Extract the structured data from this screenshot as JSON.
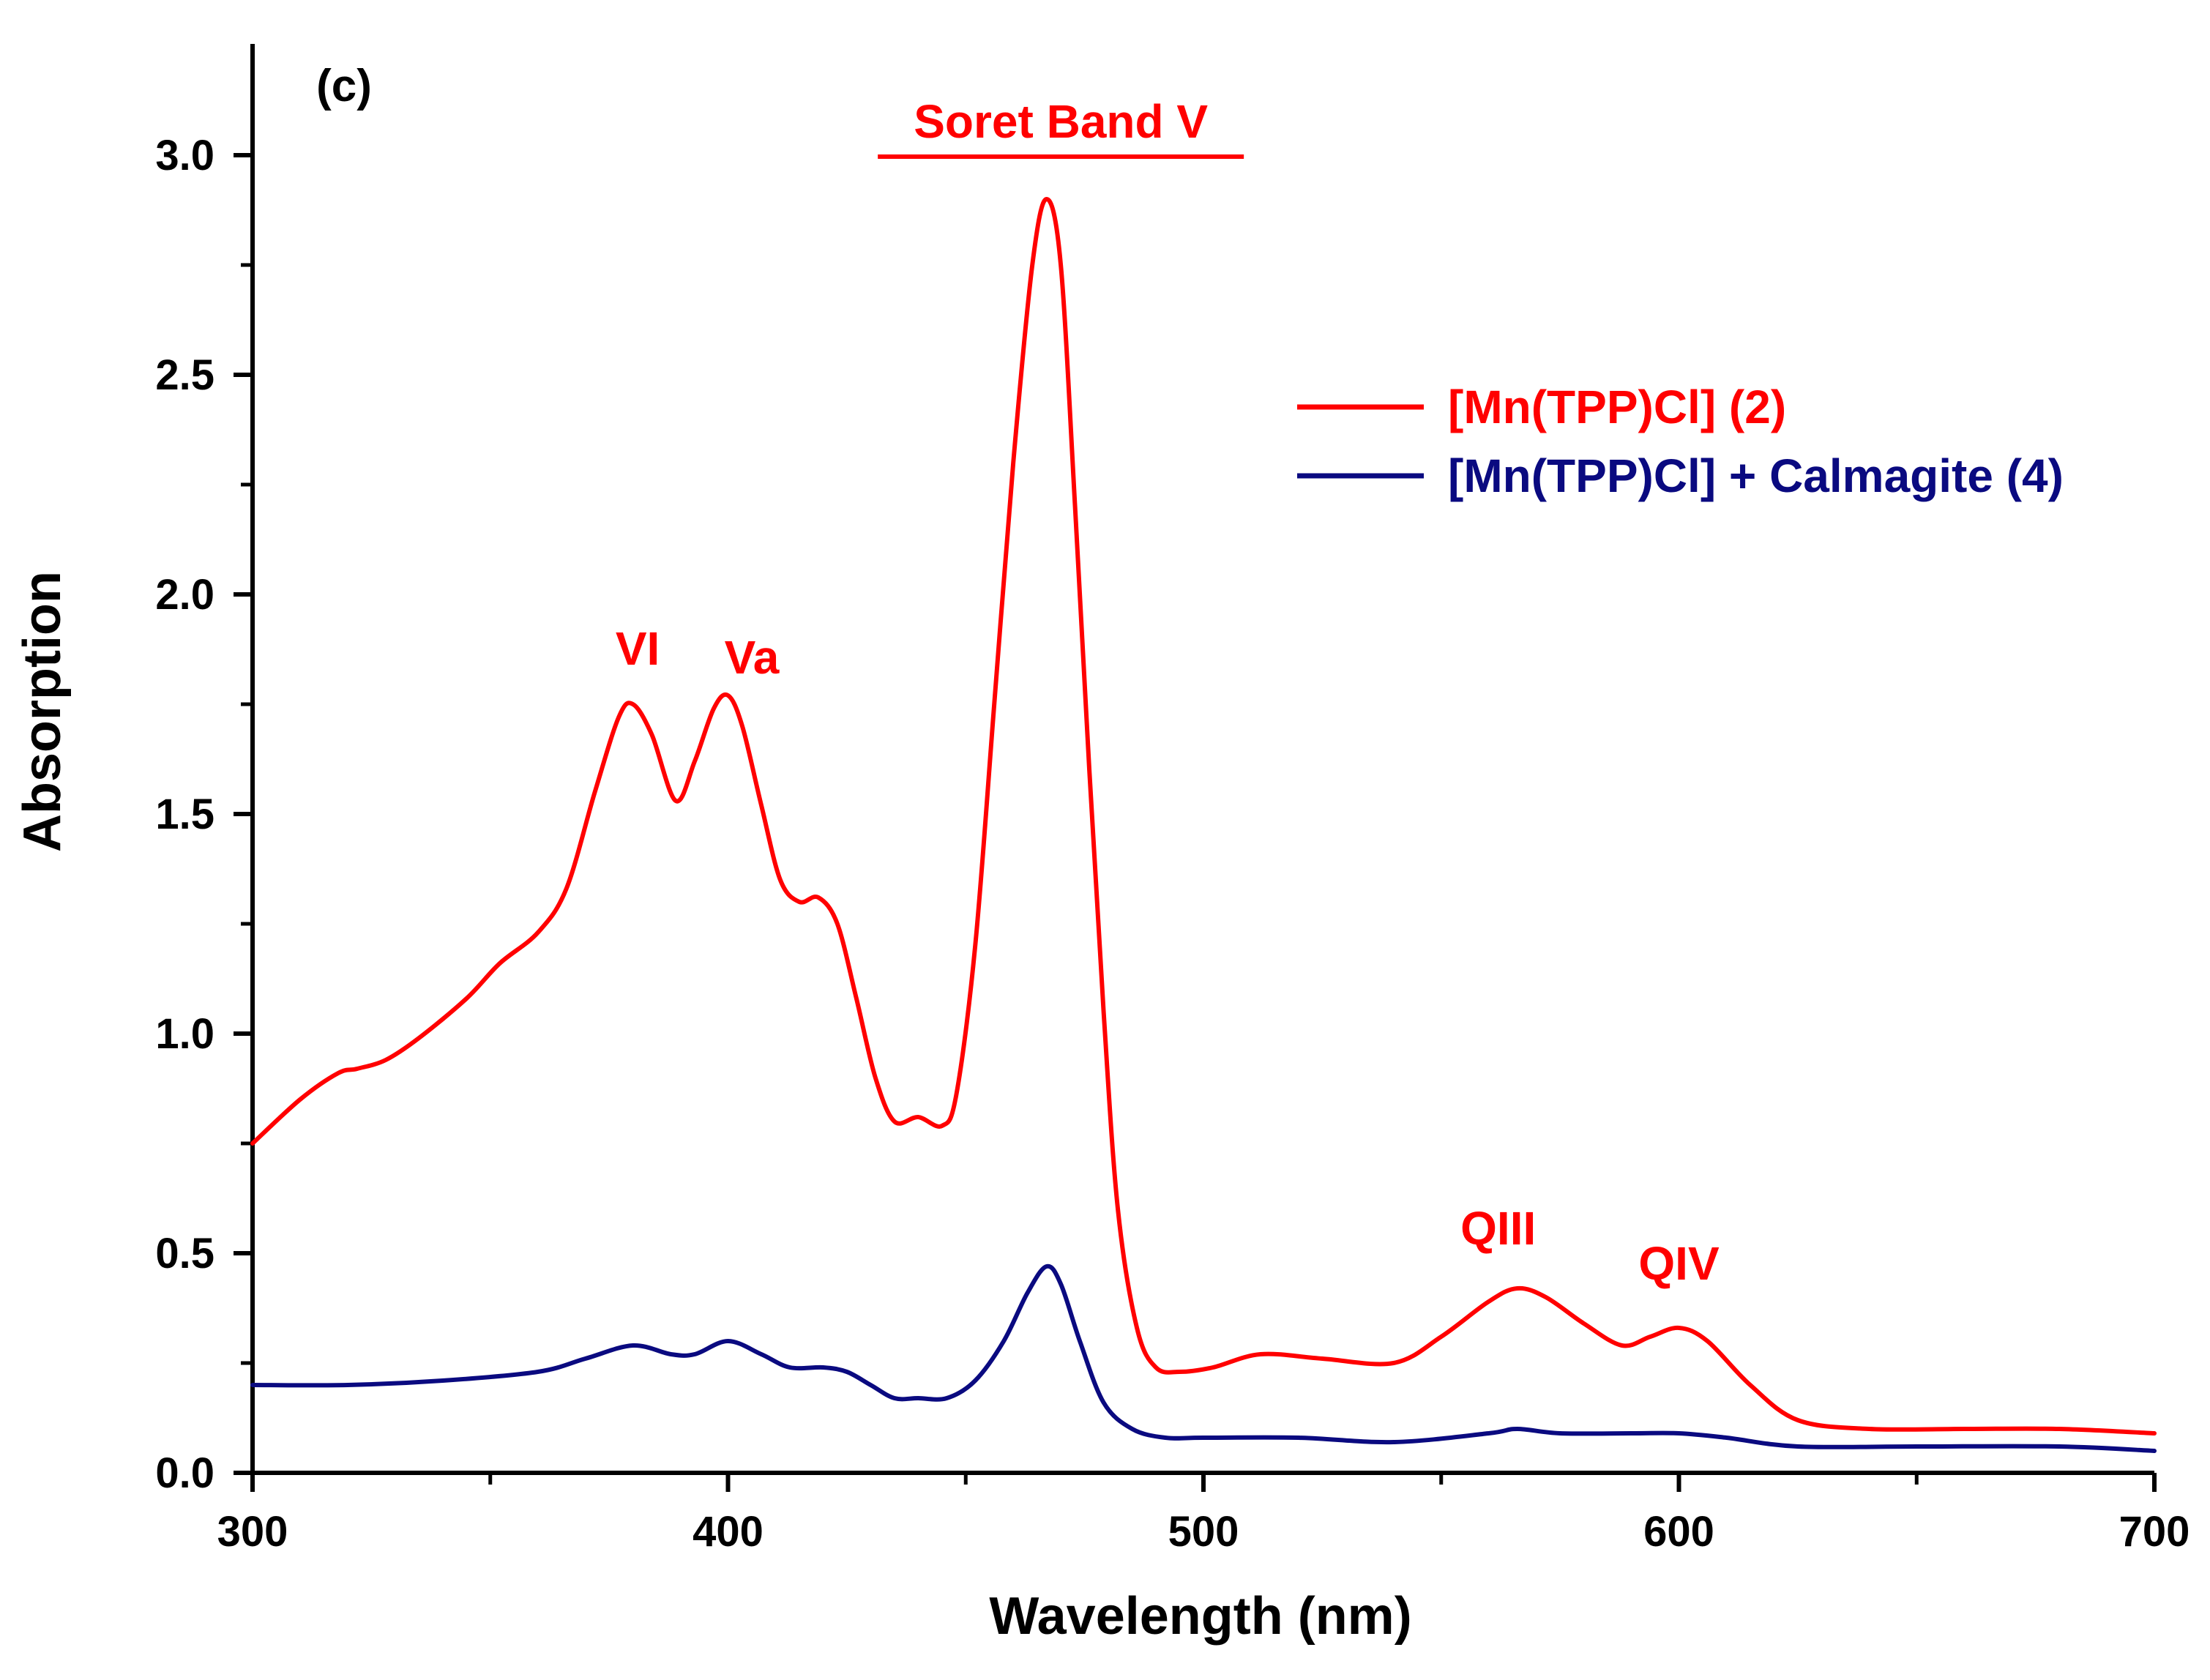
{
  "chart_data": {
    "type": "line",
    "panel_label": "(c)",
    "xlabel": "Wavelength (nm)",
    "ylabel": "Absorption",
    "xlim": [
      300,
      700
    ],
    "ylim": [
      0.0,
      3.3
    ],
    "x_ticks": [
      300,
      400,
      500,
      600,
      700
    ],
    "x_tick_labels": [
      "300",
      "400",
      "500",
      "600",
      "700"
    ],
    "y_ticks": [
      0.0,
      0.5,
      1.0,
      1.5,
      2.0,
      2.5,
      3.0
    ],
    "y_tick_labels": [
      "0.0",
      "0.5",
      "1.0",
      "1.5",
      "2.0",
      "2.5",
      "3.0"
    ],
    "x_minor_step": 50,
    "y_minor_step": 0.25,
    "grid": false,
    "legend_position": "top-right",
    "series": [
      {
        "name": "[Mn(TPP)Cl] (2)",
        "color": "#ff0000",
        "x": [
          300,
          310,
          318,
          322,
          328,
          335,
          345,
          352,
          360,
          366,
          372,
          377,
          380,
          384,
          389,
          393,
          397,
          400,
          403,
          407,
          411,
          415,
          419,
          423,
          427,
          431,
          435,
          440,
          445,
          448,
          452,
          456,
          460,
          464,
          467,
          470,
          473,
          476,
          479,
          482,
          486,
          490,
          495,
          502,
          512,
          525,
          540,
          550,
          560,
          566,
          572,
          580,
          588,
          594,
          600,
          606,
          615,
          625,
          640,
          660,
          680,
          700
        ],
        "y": [
          0.75,
          0.85,
          0.91,
          0.92,
          0.94,
          0.99,
          1.08,
          1.16,
          1.23,
          1.33,
          1.55,
          1.72,
          1.75,
          1.68,
          1.53,
          1.62,
          1.74,
          1.77,
          1.7,
          1.52,
          1.35,
          1.3,
          1.31,
          1.25,
          1.08,
          0.9,
          0.8,
          0.81,
          0.79,
          0.86,
          1.2,
          1.75,
          2.3,
          2.75,
          2.9,
          2.75,
          2.2,
          1.6,
          1.05,
          0.6,
          0.33,
          0.24,
          0.23,
          0.24,
          0.27,
          0.26,
          0.25,
          0.31,
          0.39,
          0.42,
          0.4,
          0.34,
          0.29,
          0.31,
          0.33,
          0.3,
          0.2,
          0.12,
          0.1,
          0.1,
          0.1,
          0.09
        ]
      },
      {
        "name": "[Mn(TPP)Cl] + Calmagite (4)",
        "color": "#0a0a80",
        "x": [
          300,
          320,
          340,
          360,
          370,
          380,
          388,
          393,
          400,
          407,
          413,
          420,
          425,
          430,
          435,
          440,
          446,
          452,
          458,
          463,
          467,
          470,
          474,
          479,
          485,
          492,
          500,
          520,
          540,
          560,
          566,
          575,
          590,
          600,
          610,
          625,
          650,
          680,
          700
        ],
        "y": [
          0.2,
          0.2,
          0.21,
          0.23,
          0.26,
          0.29,
          0.27,
          0.27,
          0.3,
          0.27,
          0.24,
          0.24,
          0.23,
          0.2,
          0.17,
          0.17,
          0.17,
          0.21,
          0.3,
          0.41,
          0.47,
          0.43,
          0.3,
          0.16,
          0.1,
          0.08,
          0.08,
          0.08,
          0.07,
          0.09,
          0.1,
          0.09,
          0.09,
          0.09,
          0.08,
          0.06,
          0.06,
          0.06,
          0.05
        ]
      }
    ],
    "annotations": [
      {
        "text": "Soret Band V",
        "x": 470,
        "y": 3.04,
        "color": "#ff0000",
        "underline": true
      },
      {
        "text": "VI",
        "x": 381,
        "y": 1.84,
        "color": "#ff0000",
        "underline": false
      },
      {
        "text": "Va",
        "x": 405,
        "y": 1.82,
        "color": "#ff0000",
        "underline": false
      },
      {
        "text": "QIII",
        "x": 562,
        "y": 0.52,
        "color": "#ff0000",
        "underline": false
      },
      {
        "text": "QIV",
        "x": 600,
        "y": 0.44,
        "color": "#ff0000",
        "underline": false
      }
    ]
  }
}
